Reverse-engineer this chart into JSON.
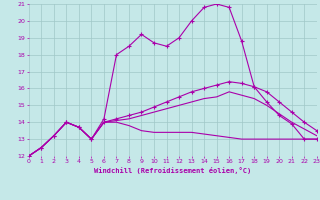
{
  "xlabel": "Windchill (Refroidissement éolien,°C)",
  "bg_color": "#c5e8e8",
  "grid_color": "#a0c8c8",
  "line_color": "#aa00aa",
  "xmin": 0,
  "xmax": 23,
  "ymin": 12,
  "ymax": 21,
  "line1_x": [
    0,
    1,
    2,
    3,
    4,
    5,
    6,
    7,
    8,
    9,
    10,
    11,
    12,
    13,
    14,
    15,
    16,
    17,
    18,
    19,
    20,
    21,
    22,
    23
  ],
  "line1_y": [
    12.0,
    12.5,
    13.2,
    14.0,
    13.7,
    13.0,
    14.2,
    18.0,
    18.5,
    19.2,
    18.7,
    18.5,
    19.0,
    20.0,
    20.8,
    21.0,
    20.8,
    18.8,
    16.1,
    15.2,
    14.4,
    13.9,
    13.0,
    13.0
  ],
  "line2_x": [
    0,
    1,
    2,
    3,
    4,
    5,
    6,
    7,
    8,
    9,
    10,
    11,
    12,
    13,
    14,
    15,
    16,
    17,
    18,
    19,
    20,
    21,
    22,
    23
  ],
  "line2_y": [
    12.0,
    12.5,
    13.2,
    14.0,
    13.7,
    13.0,
    14.0,
    14.0,
    13.8,
    13.5,
    13.4,
    13.4,
    13.4,
    13.4,
    13.3,
    13.2,
    13.1,
    13.0,
    13.0,
    13.0,
    13.0,
    13.0,
    13.0,
    13.0
  ],
  "line3_x": [
    0,
    1,
    2,
    3,
    4,
    5,
    6,
    7,
    8,
    9,
    10,
    11,
    12,
    13,
    14,
    15,
    16,
    17,
    18,
    19,
    20,
    21,
    22,
    23
  ],
  "line3_y": [
    12.0,
    12.5,
    13.2,
    14.0,
    13.7,
    13.0,
    14.0,
    14.1,
    14.2,
    14.4,
    14.6,
    14.8,
    15.0,
    15.2,
    15.4,
    15.5,
    15.8,
    15.6,
    15.4,
    15.0,
    14.5,
    14.0,
    13.6,
    13.2
  ],
  "line4_x": [
    0,
    1,
    2,
    3,
    4,
    5,
    6,
    7,
    8,
    9,
    10,
    11,
    12,
    13,
    14,
    15,
    16,
    17,
    18,
    19,
    20,
    21,
    22,
    23
  ],
  "line4_y": [
    12.0,
    12.5,
    13.2,
    14.0,
    13.7,
    13.0,
    14.0,
    14.2,
    14.4,
    14.6,
    14.9,
    15.2,
    15.5,
    15.8,
    16.0,
    16.2,
    16.4,
    16.3,
    16.1,
    15.8,
    15.2,
    14.6,
    14.0,
    13.5
  ]
}
